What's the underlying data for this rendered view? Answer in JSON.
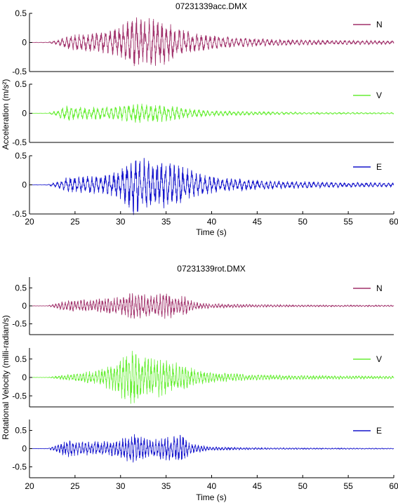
{
  "chart_data": [
    {
      "type": "line",
      "title": "07231339acc.DMX",
      "xlabel": "Time (s)",
      "ylabel": "Acceleration (m/s²)",
      "xlim": [
        20,
        60
      ],
      "xticks": [
        20,
        25,
        30,
        35,
        40,
        45,
        50,
        55,
        60
      ],
      "grid": false,
      "legend_position": "top-right",
      "panels": [
        {
          "name": "N",
          "color": "#a0306a",
          "ylim": [
            -0.5,
            0.5
          ],
          "yticks": [
            {
              "v": 0.5,
              "label": "0.5"
            },
            {
              "v": 0,
              "label": "0"
            },
            {
              "v": -0.5,
              "label": "-0.5"
            }
          ],
          "envelope": [
            [
              20,
              0.002
            ],
            [
              22,
              0.004
            ],
            [
              23,
              0.03
            ],
            [
              24,
              0.09
            ],
            [
              25,
              0.12
            ],
            [
              27,
              0.13
            ],
            [
              28,
              0.16
            ],
            [
              29.5,
              0.2
            ],
            [
              30.5,
              0.28
            ],
            [
              31.5,
              0.36
            ],
            [
              33,
              0.34
            ],
            [
              34.5,
              0.33
            ],
            [
              36,
              0.22
            ],
            [
              38,
              0.14
            ],
            [
              40,
              0.1
            ],
            [
              43,
              0.07
            ],
            [
              47,
              0.045
            ],
            [
              52,
              0.035
            ],
            [
              56,
              0.03
            ],
            [
              60,
              0.025
            ]
          ]
        },
        {
          "name": "V",
          "color": "#66ee33",
          "ylim": [
            -0.5,
            0.5
          ],
          "yticks": [
            {
              "v": 0.5,
              "label": "0.5"
            },
            {
              "v": 0,
              "label": "0"
            },
            {
              "v": -0.5,
              "label": "-0.5"
            }
          ],
          "envelope": [
            [
              20,
              0.002
            ],
            [
              22,
              0.004
            ],
            [
              23,
              0.04
            ],
            [
              24,
              0.11
            ],
            [
              25,
              0.09
            ],
            [
              28,
              0.09
            ],
            [
              30,
              0.11
            ],
            [
              32,
              0.14
            ],
            [
              34,
              0.13
            ],
            [
              36,
              0.1
            ],
            [
              38,
              0.06
            ],
            [
              40,
              0.04
            ],
            [
              45,
              0.025
            ],
            [
              50,
              0.015
            ],
            [
              60,
              0.01
            ]
          ]
        },
        {
          "name": "E",
          "color": "#1414cc",
          "ylim": [
            -0.5,
            0.5
          ],
          "yticks": [
            {
              "v": 0.5,
              "label": "0.5"
            },
            {
              "v": 0,
              "label": "0"
            },
            {
              "v": -0.5,
              "label": "-0.5"
            }
          ],
          "envelope": [
            [
              20,
              0.002
            ],
            [
              22,
              0.004
            ],
            [
              23,
              0.04
            ],
            [
              24,
              0.1
            ],
            [
              25,
              0.12
            ],
            [
              28,
              0.13
            ],
            [
              30,
              0.22
            ],
            [
              31.5,
              0.45
            ],
            [
              33,
              0.35
            ],
            [
              35,
              0.33
            ],
            [
              37,
              0.25
            ],
            [
              39,
              0.15
            ],
            [
              41,
              0.1
            ],
            [
              45,
              0.07
            ],
            [
              50,
              0.05
            ],
            [
              55,
              0.035
            ],
            [
              60,
              0.03
            ]
          ]
        }
      ]
    },
    {
      "type": "line",
      "title": "07231339rot.DMX",
      "xlabel": "Time (s)",
      "ylabel": "Rotational Velocity (milli-radian/s)",
      "xlim": [
        20,
        60
      ],
      "xticks": [
        20,
        25,
        30,
        35,
        40,
        45,
        50,
        55,
        60
      ],
      "grid": false,
      "legend_position": "top-right",
      "panels": [
        {
          "name": "N",
          "color": "#a0306a",
          "ylim": [
            -0.8,
            0.8
          ],
          "yticks": [
            {
              "v": 0.5,
              "label": "0.5"
            },
            {
              "v": 0,
              "label": "0"
            },
            {
              "v": -0.5,
              "label": "-0.5"
            }
          ],
          "envelope": [
            [
              20,
              0.002
            ],
            [
              22,
              0.005
            ],
            [
              23,
              0.06
            ],
            [
              24,
              0.12
            ],
            [
              26,
              0.14
            ],
            [
              28,
              0.18
            ],
            [
              30,
              0.2
            ],
            [
              31.5,
              0.33
            ],
            [
              33,
              0.25
            ],
            [
              35,
              0.3
            ],
            [
              37,
              0.22
            ],
            [
              38,
              0.1
            ],
            [
              40,
              0.05
            ],
            [
              45,
              0.03
            ],
            [
              50,
              0.02
            ],
            [
              60,
              0.015
            ]
          ]
        },
        {
          "name": "V",
          "color": "#66ee33",
          "ylim": [
            -0.8,
            0.8
          ],
          "yticks": [
            {
              "v": 0.5,
              "label": "0.5"
            },
            {
              "v": 0,
              "label": "0"
            },
            {
              "v": -0.5,
              "label": "-0.5"
            }
          ],
          "envelope": [
            [
              20,
              0.002
            ],
            [
              22,
              0.004
            ],
            [
              23,
              0.03
            ],
            [
              24,
              0.06
            ],
            [
              26,
              0.12
            ],
            [
              28,
              0.2
            ],
            [
              29.5,
              0.35
            ],
            [
              30.5,
              0.55
            ],
            [
              31.3,
              0.75
            ],
            [
              32.5,
              0.5
            ],
            [
              34,
              0.45
            ],
            [
              36,
              0.35
            ],
            [
              38,
              0.2
            ],
            [
              40,
              0.12
            ],
            [
              44,
              0.07
            ],
            [
              48,
              0.05
            ],
            [
              52,
              0.04
            ],
            [
              56,
              0.035
            ],
            [
              60,
              0.03
            ]
          ]
        },
        {
          "name": "E",
          "color": "#1414cc",
          "ylim": [
            -0.8,
            0.8
          ],
          "yticks": [
            {
              "v": 0.5,
              "label": "0.5"
            },
            {
              "v": 0,
              "label": "0"
            },
            {
              "v": -0.5,
              "label": "-0.5"
            }
          ],
          "envelope": [
            [
              20,
              0.002
            ],
            [
              22,
              0.005
            ],
            [
              23,
              0.08
            ],
            [
              24,
              0.2
            ],
            [
              26,
              0.16
            ],
            [
              28,
              0.16
            ],
            [
              30,
              0.2
            ],
            [
              31.5,
              0.4
            ],
            [
              33,
              0.2
            ],
            [
              35,
              0.28
            ],
            [
              37,
              0.34
            ],
            [
              37.6,
              0.12
            ],
            [
              40,
              0.04
            ],
            [
              45,
              0.02
            ],
            [
              50,
              0.015
            ],
            [
              60,
              0.01
            ]
          ]
        }
      ]
    }
  ]
}
